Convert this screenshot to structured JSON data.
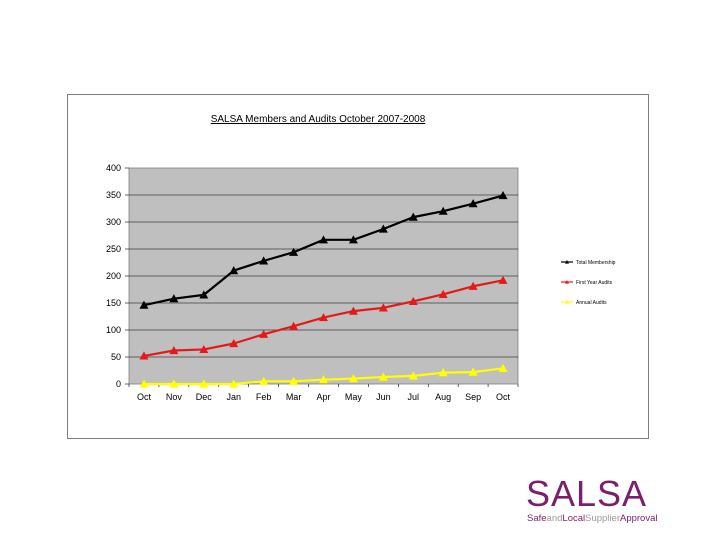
{
  "chart_data": {
    "type": "line",
    "title": "SALSA Members and Audits October 2007-2008",
    "categories": [
      "Oct",
      "Nov",
      "Dec",
      "Jan",
      "Feb",
      "Mar",
      "Apr",
      "May",
      "Jun",
      "Jul",
      "Aug",
      "Sep",
      "Oct"
    ],
    "ylim": [
      0,
      400
    ],
    "yticks": [
      "0",
      "50",
      "100",
      "150",
      "200",
      "250",
      "300",
      "350",
      "400"
    ],
    "grid": true,
    "legend_position": "right",
    "series": [
      {
        "name": "Total Membership",
        "color": "#000000",
        "values": [
          146,
          158,
          165,
          210,
          228,
          244,
          267,
          267,
          287,
          309,
          320,
          334,
          349
        ]
      },
      {
        "name": "First Year Audits",
        "color": "#e41a1a",
        "values": [
          52,
          62,
          64,
          75,
          92,
          107,
          123,
          135,
          141,
          153,
          166,
          181,
          192
        ]
      },
      {
        "name": "Annual Audits",
        "color": "#ffff00",
        "values": [
          0,
          0,
          0,
          0,
          5,
          5,
          8,
          10,
          13,
          15,
          21,
          22,
          29
        ]
      }
    ]
  },
  "logo": {
    "word": "SALSA",
    "tagline_parts": [
      "Safe",
      "and",
      "Local",
      "Supplier",
      "Approval"
    ],
    "brand_color": "#7b1f6d",
    "muted_color": "#9a9a9a"
  }
}
